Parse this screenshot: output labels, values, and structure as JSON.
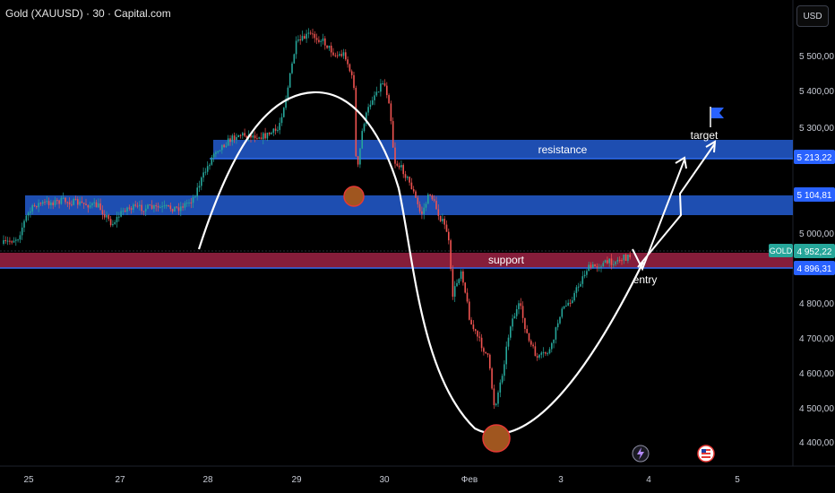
{
  "header": {
    "title": "Gold (XAUUSD) · 30 · Capital.com",
    "currency_button": "USD"
  },
  "colors": {
    "background": "#000000",
    "zone_blue": "#2156c4",
    "zone_red": "#8c1f3d",
    "up_candle": "#26a69a",
    "down_candle": "#ef5350",
    "curve": "#ffffff",
    "circle_fill": "#a0561f",
    "circle_stroke": "#e53935"
  },
  "price_axis": {
    "labels": [
      "5 500,00",
      "5 400,00",
      "5 300,00",
      "5 000,00",
      "4 800,00",
      "4 700,00",
      "4 600,00",
      "4 500,00",
      "4 400,00"
    ],
    "tags": [
      {
        "text": "5 213,22",
        "kind": "level"
      },
      {
        "text": "5 104,81",
        "kind": "level"
      },
      {
        "text": "GOLD",
        "kind": "symbol"
      },
      {
        "text": "4 952,22",
        "kind": "price"
      },
      {
        "text": "4 896,31",
        "kind": "level"
      }
    ]
  },
  "time_axis": {
    "labels": [
      "25",
      "27",
      "28",
      "29",
      "30",
      "Фев",
      "3",
      "4",
      "5"
    ]
  },
  "annotations": {
    "resistance": "resistance",
    "support": "support",
    "target": "target",
    "entry": "entry"
  },
  "icons": [
    "flag-icon",
    "lightning-icon",
    "us-flag-icon"
  ]
}
